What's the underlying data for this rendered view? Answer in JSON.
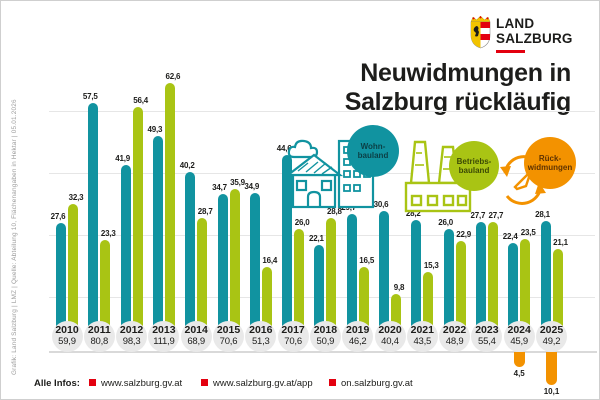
{
  "credit_line": "Grafik: Land Salzburg | LMZ | Quelle: Abteilung 10, Flächenangaben in Hektar | 05.01.2026",
  "logo": {
    "line1": "LAND",
    "line2": "SALZBURG"
  },
  "title": {
    "line1": "Neuwidmungen in",
    "line2": "Salzburg rückläufig"
  },
  "legend": {
    "wohnbauland": {
      "line1": "Wohn-",
      "line2": "bauland"
    },
    "betriebsbauland": {
      "line1": "Betriebs-",
      "line2": "bauland"
    },
    "rueckwidmungen": {
      "line1": "Rück-",
      "line2": "widmungen"
    }
  },
  "colors": {
    "wohnbauland": "#1193a0",
    "betriebsbauland": "#a9c414",
    "rueckwidmungen": "#f39200",
    "accent_red": "#e3000f",
    "badge_gray": "#e9e9e9"
  },
  "chart_data": {
    "type": "bar",
    "title": "Neuwidmungen in Salzburg rückläufig",
    "unit": "Hektar",
    "categories": [
      "2010",
      "2011",
      "2012",
      "2013",
      "2014",
      "2015",
      "2016",
      "2017",
      "2018",
      "2019",
      "2020",
      "2021",
      "2022",
      "2023",
      "2024",
      "2025"
    ],
    "series": [
      {
        "name": "Wohnbauland",
        "color": "#1193a0",
        "values": [
          27.6,
          57.5,
          41.9,
          49.3,
          40.2,
          34.7,
          34.9,
          44.6,
          22.1,
          29.7,
          30.6,
          28.2,
          26.0,
          27.7,
          22.4,
          28.1
        ],
        "labels": [
          "27,6",
          "57,5",
          "41,9",
          "49,3",
          "40,2",
          "34,7",
          "34,9",
          "44,6",
          "22,1",
          "29,7",
          "30,6",
          "28,2",
          "26,0",
          "27,7",
          "22,4",
          "28,1"
        ]
      },
      {
        "name": "Betriebsbauland",
        "color": "#a9c414",
        "values": [
          32.3,
          23.3,
          56.4,
          62.6,
          28.7,
          35.9,
          16.4,
          26.0,
          28.8,
          16.5,
          9.8,
          15.3,
          22.9,
          27.7,
          23.5,
          21.1
        ],
        "labels": [
          "32,3",
          "23,3",
          "56,4",
          "62,6",
          "28,7",
          "35,9",
          "16,4",
          "26,0",
          "28,8",
          "16,5",
          "9,8",
          "15,3",
          "22,9",
          "27,7",
          "23,5",
          "21,1"
        ]
      },
      {
        "name": "Rückwidmungen",
        "color": "#f39200",
        "values": [
          null,
          null,
          null,
          null,
          null,
          null,
          null,
          null,
          null,
          null,
          null,
          null,
          null,
          null,
          4.5,
          10.1
        ],
        "labels": [
          null,
          null,
          null,
          null,
          null,
          null,
          null,
          null,
          null,
          null,
          null,
          null,
          null,
          null,
          "4,5",
          "10,1"
        ],
        "direction": "below-axis"
      }
    ],
    "totals": [
      "59,9",
      "80,8",
      "98,3",
      "111,9",
      "68,9",
      "70,6",
      "51,3",
      "70,6",
      "50,9",
      "46,2",
      "40,4",
      "43,5",
      "48,9",
      "55,4",
      "45,9",
      "49,2"
    ],
    "ylim": [
      0,
      65
    ],
    "grid": "horizontal",
    "legend_position": "center-right bubbles"
  },
  "footer": {
    "label": "Alle Infos:",
    "links": [
      "www.salzburg.gv.at",
      "www.salzburg.gv.at/app",
      "on.salzburg.gv.at"
    ]
  }
}
